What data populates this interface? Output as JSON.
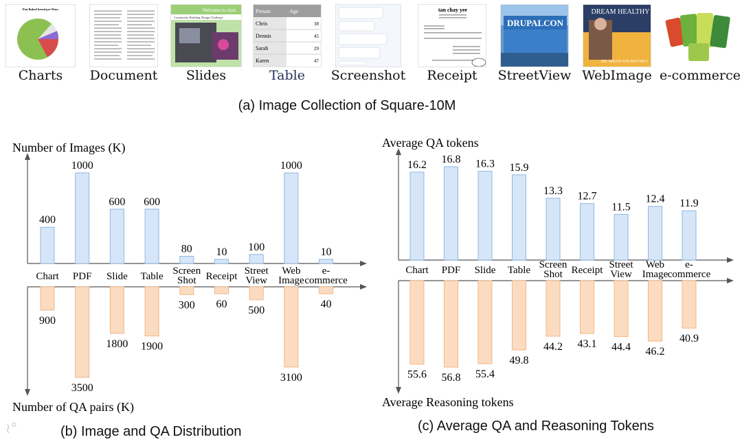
{
  "header": {
    "thumbnails": [
      {
        "label": "Charts",
        "icon": "pie-chart-thumbnail",
        "mini_title": "Pan Baked bread per Ways"
      },
      {
        "label": "Document",
        "icon": "document-thumbnail"
      },
      {
        "label": "Slides",
        "icon": "slides-thumbnail",
        "mini_title": "Welcome to class",
        "mini_subtitle": "Community Building Design Challenge"
      },
      {
        "label": "Table",
        "icon": "table-thumbnail",
        "table_headers": [
          "Person",
          "Age"
        ],
        "table_rows": [
          [
            "Chris",
            "38"
          ],
          [
            "Dennis",
            "45"
          ],
          [
            "Sarah",
            "29"
          ],
          [
            "Karen",
            "47"
          ]
        ]
      },
      {
        "label": "Screenshot",
        "icon": "chat-screenshot-thumbnail"
      },
      {
        "label": "Receipt",
        "icon": "receipt-thumbnail",
        "mini_title": "tan chay yee"
      },
      {
        "label": "StreetView",
        "icon": "street-sign-thumbnail",
        "mini_title": "DRUPALCON"
      },
      {
        "label": "WebImage",
        "icon": "book-cover-thumbnail",
        "mini_title": "DREAM HEALTHY",
        "mini_subtitle": "DR. BRIAN WILMOVSKY"
      },
      {
        "label": "e-commerce",
        "icon": "snack-packs-thumbnail"
      }
    ],
    "caption": "(a) Image Collection of Square-10M"
  },
  "chart_data": [
    {
      "type": "bar",
      "layout": "diverging",
      "categories": [
        "Chart",
        "PDF",
        "Slide",
        "Table",
        "Screen Shot",
        "Receipt",
        "Street View",
        "Web Image",
        "e-commerce"
      ],
      "series": [
        {
          "name": "Number of Images (K)",
          "direction": "up",
          "color": "#d6e6f8",
          "stroke": "#8fb6e2",
          "values": [
            400,
            1000,
            600,
            600,
            80,
            10,
            100,
            1000,
            10
          ]
        },
        {
          "name": "Number of QA pairs (K)",
          "direction": "down",
          "color": "#fbdcc0",
          "stroke": "#f0b687",
          "values": [
            900,
            3500,
            1800,
            1900,
            300,
            60,
            500,
            3100,
            40
          ]
        }
      ],
      "ylabel_top": "Number of Images (K)",
      "ylabel_bottom": "Number of QA pairs (K)",
      "caption": "(b) Image and QA Distribution"
    },
    {
      "type": "bar",
      "layout": "diverging",
      "categories": [
        "Chart",
        "PDF",
        "Slide",
        "Table",
        "Screen Shot",
        "Receipt",
        "Street View",
        "Web Image",
        "e-commerce"
      ],
      "series": [
        {
          "name": "Average QA tokens",
          "direction": "up",
          "color": "#d6e6f8",
          "stroke": "#8fb6e2",
          "values": [
            16.2,
            16.8,
            16.3,
            15.9,
            13.3,
            12.7,
            11.5,
            12.4,
            11.9
          ]
        },
        {
          "name": "Average Reasoning tokens",
          "direction": "down",
          "color": "#fbdcc0",
          "stroke": "#f0b687",
          "values": [
            55.6,
            56.8,
            55.4,
            49.8,
            44.2,
            43.1,
            44.4,
            46.2,
            40.9
          ]
        }
      ],
      "ylabel_top": "Average QA tokens",
      "ylabel_bottom": "Average Reasoning tokens",
      "caption": "(c) Average QA and Reasoning Tokens"
    }
  ]
}
